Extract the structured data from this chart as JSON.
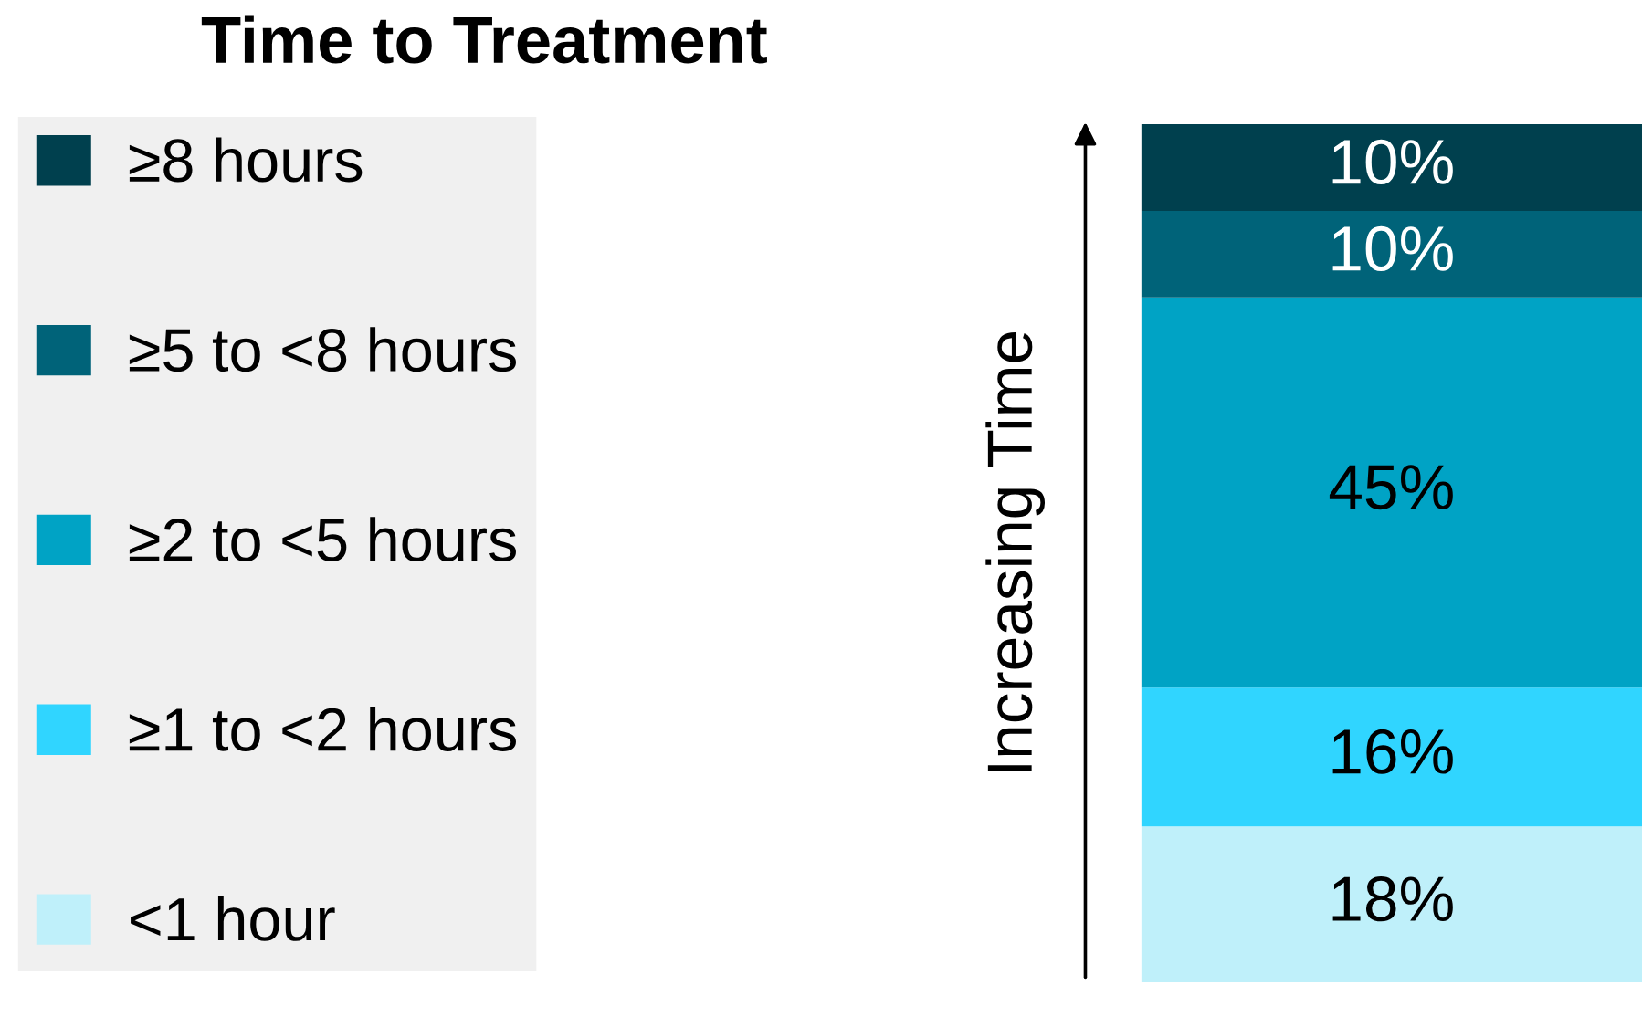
{
  "chart_data": {
    "type": "bar",
    "stacked": true,
    "title": "Time to Treatment",
    "ylabel": "Increasing Time",
    "categories": [
      null
    ],
    "series": [
      {
        "name": "<1 hour",
        "color": "#bff0fa",
        "values": [
          18
        ],
        "value_labels": [
          "18%"
        ]
      },
      {
        "name": "≥1 to <2 hours",
        "color": "#30d5ff",
        "values": [
          16
        ],
        "value_labels": [
          "16%"
        ]
      },
      {
        "name": "≥2 to <5 hours",
        "color": "#00a3c5",
        "values": [
          45
        ],
        "value_labels": [
          "45%"
        ]
      },
      {
        "name": "≥5 to <8 hours",
        "color": "#006379",
        "values": [
          10
        ],
        "value_labels": [
          "10%"
        ]
      },
      {
        "name": "≥8 hours",
        "color": "#00404e",
        "values": [
          10
        ],
        "value_labels": [
          "10%"
        ]
      }
    ],
    "legend": "left",
    "grid": false
  }
}
